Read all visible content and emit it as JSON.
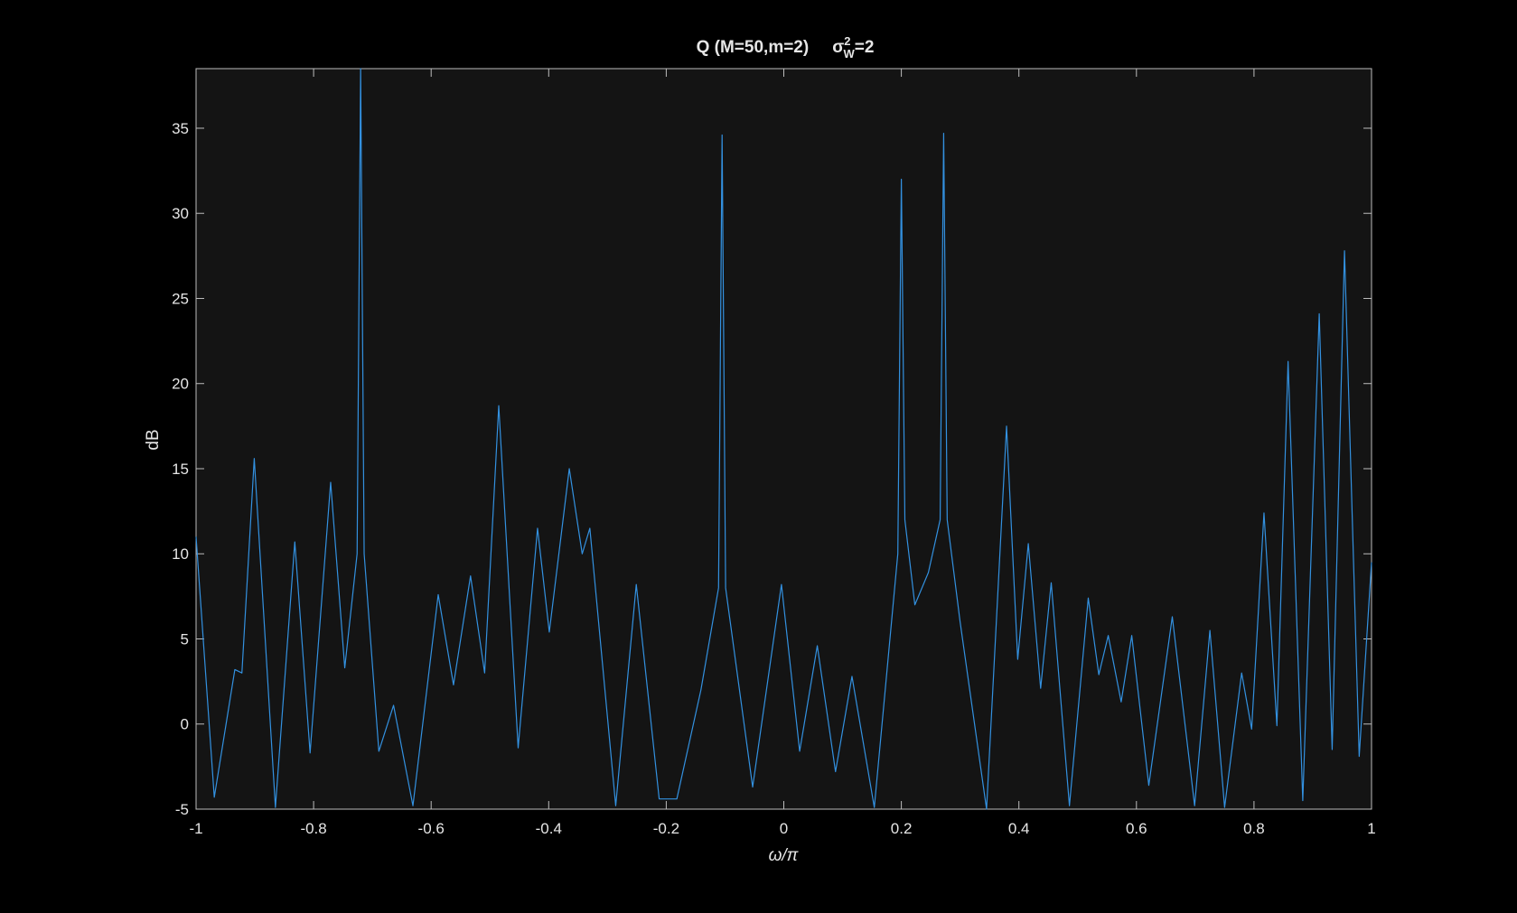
{
  "chart_data": {
    "type": "line",
    "title": {
      "text": "Q  (M=50,m=2)",
      "symbol": "σ",
      "sup": "2",
      "sub": "W",
      "rest": "=2"
    },
    "x_label": "ω/π",
    "y_label": "dB",
    "color": "#3391e0",
    "xlim": [
      -1,
      1
    ],
    "ylim": [
      -5,
      38.5
    ],
    "xticks": [
      -1,
      -0.8,
      -0.6,
      -0.4,
      -0.2,
      0,
      0.2,
      0.4,
      0.6,
      0.8,
      1
    ],
    "yticks": [
      -5,
      0,
      5,
      10,
      15,
      20,
      25,
      30,
      35
    ],
    "x": [
      -1,
      -0.969,
      -0.934,
      -0.922,
      -0.901,
      -0.865,
      -0.832,
      -0.806,
      -0.771,
      -0.747,
      -0.726,
      -0.72,
      -0.714,
      -0.689,
      -0.664,
      -0.631,
      -0.588,
      -0.562,
      -0.533,
      -0.509,
      -0.485,
      -0.452,
      -0.419,
      -0.399,
      -0.365,
      -0.343,
      -0.33,
      -0.286,
      -0.251,
      -0.212,
      -0.182,
      -0.141,
      -0.111,
      -0.105,
      -0.099,
      -0.053,
      -0.004,
      0.027,
      0.057,
      0.088,
      0.116,
      0.154,
      0.194,
      0.2,
      0.206,
      0.223,
      0.246,
      0.266,
      0.272,
      0.278,
      0.3,
      0.345,
      0.379,
      0.398,
      0.416,
      0.437,
      0.455,
      0.486,
      0.518,
      0.536,
      0.552,
      0.574,
      0.592,
      0.621,
      0.661,
      0.699,
      0.725,
      0.75,
      0.779,
      0.796,
      0.817,
      0.839,
      0.858,
      0.883,
      0.911,
      0.933,
      0.954,
      0.979,
      1
    ],
    "values": [
      11,
      -4.3,
      3.2,
      3,
      15.6,
      -4.9,
      10.7,
      -1.7,
      14.2,
      3.3,
      10,
      38.5,
      10,
      -1.6,
      1.1,
      -4.8,
      7.6,
      2.3,
      8.7,
      3,
      18.7,
      -1.4,
      11.5,
      5.4,
      15,
      10,
      11.5,
      -4.8,
      8.2,
      -4.4,
      -4.4,
      2,
      8,
      34.6,
      8,
      -3.7,
      8.2,
      -1.6,
      4.6,
      -2.8,
      2.8,
      -4.9,
      10,
      32,
      12,
      7,
      8.9,
      12,
      34.7,
      12,
      6,
      -5,
      17.5,
      3.8,
      10.6,
      2.1,
      8.3,
      -4.8,
      7.4,
      2.9,
      5.2,
      1.3,
      5.2,
      -3.6,
      6.3,
      -4.8,
      5.5,
      -4.9,
      3,
      -0.3,
      12.4,
      -0.1,
      21.3,
      -4.5,
      24.1,
      -1.5,
      27.8,
      -1.9,
      9.5
    ]
  }
}
